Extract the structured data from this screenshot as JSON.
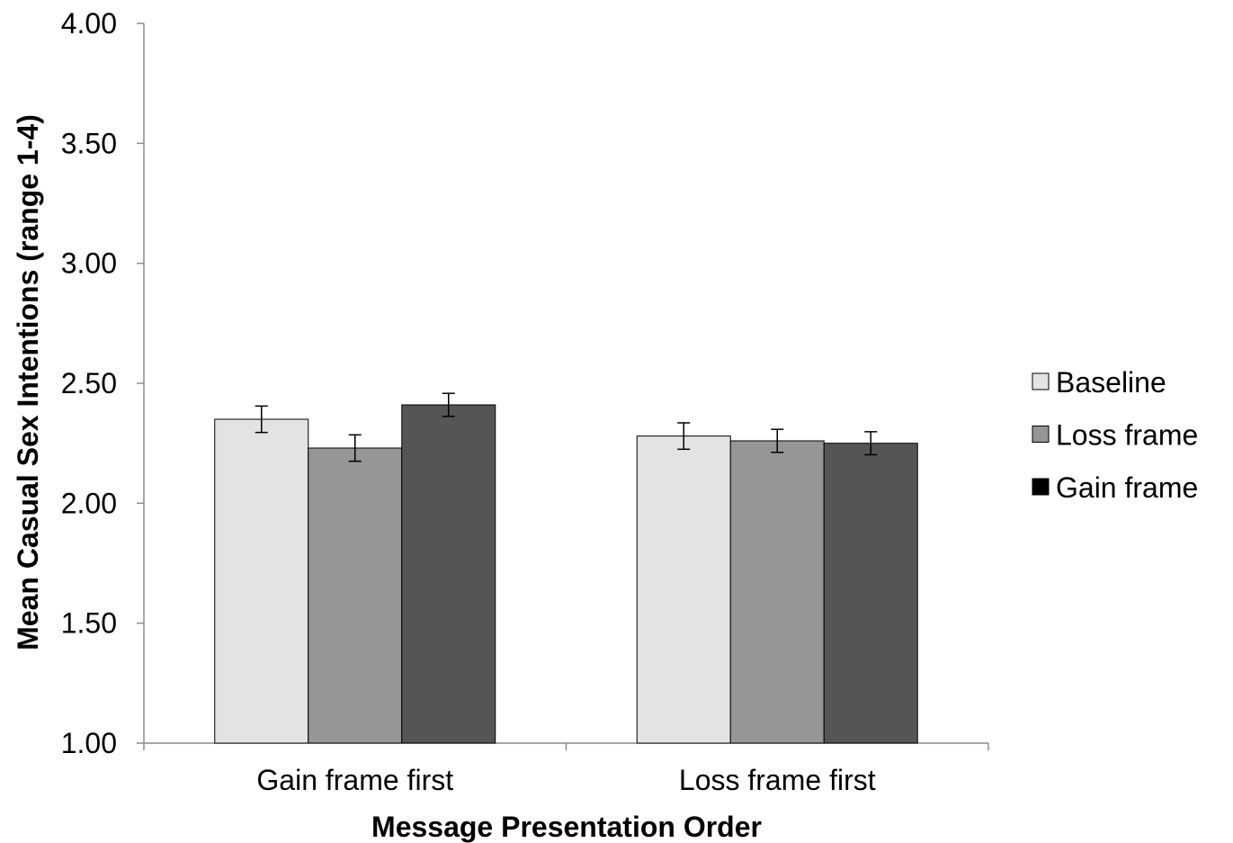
{
  "chart_data": {
    "type": "bar",
    "title": "",
    "xlabel": "Message Presentation Order",
    "ylabel": "Mean Casual Sex Intentions (range 1-4)",
    "ylim": [
      1.0,
      4.0
    ],
    "yticks": [
      "1.00",
      "1.50",
      "2.00",
      "2.50",
      "3.00",
      "3.50",
      "4.00"
    ],
    "ytick_values": [
      1.0,
      1.5,
      2.0,
      2.5,
      3.0,
      3.5,
      4.0
    ],
    "categories": [
      "Gain frame first",
      "Loss frame first"
    ],
    "series": [
      {
        "name": "Baseline",
        "color": "#e3e3e3",
        "values": [
          2.35,
          2.28
        ],
        "errors": [
          0.055,
          0.055
        ]
      },
      {
        "name": "Loss frame",
        "color": "#969696",
        "values": [
          2.23,
          2.26
        ],
        "errors": [
          0.055,
          0.048
        ]
      },
      {
        "name": "Gain frame",
        "color": "#555555",
        "values": [
          2.41,
          2.25
        ],
        "errors": [
          0.048,
          0.048
        ]
      }
    ],
    "legend_swatch_colors": [
      "#e3e3e3",
      "#969696",
      "#000000"
    ],
    "grid": false,
    "legend_position": "right"
  }
}
